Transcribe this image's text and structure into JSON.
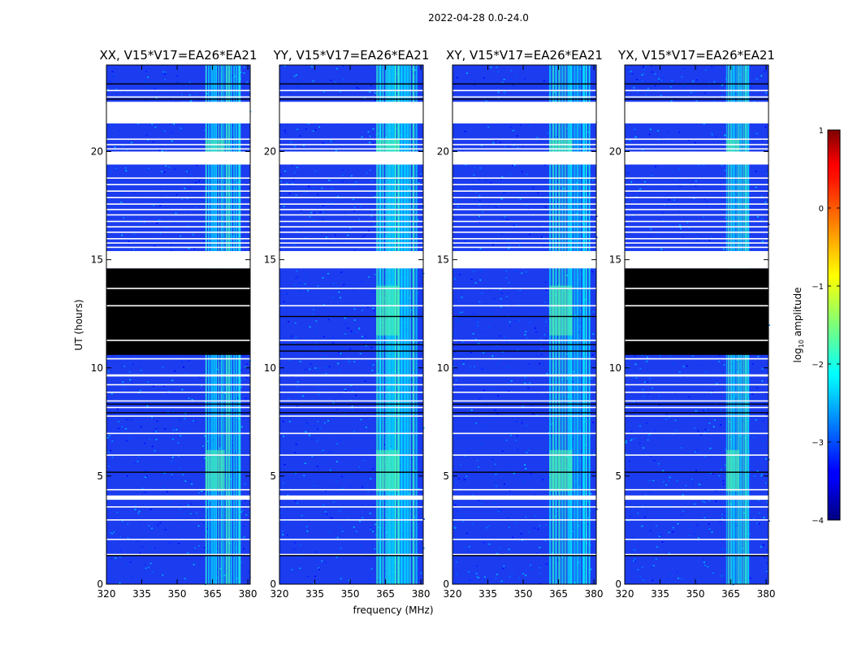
{
  "chart_data": {
    "type": "heatmap",
    "suptitle": "2022-04-28 0.0-24.0",
    "xlabel": "frequency (MHz)",
    "ylabel": "UT (hours)",
    "xlim": [
      320,
      381
    ],
    "ylim": [
      0,
      24
    ],
    "xticks": [
      "320",
      "335",
      "350",
      "365",
      "380"
    ],
    "xtick_values": [
      320,
      335,
      350,
      365,
      380
    ],
    "yticks": [
      "0",
      "5",
      "10",
      "15",
      "20"
    ],
    "ytick_values": [
      0,
      5,
      10,
      15,
      20
    ],
    "panels": [
      {
        "title": "XX, V15*V17=EA26*EA21",
        "blacked_out_ut": [
          10.6,
          14.6
        ],
        "bright_band_mhz": [
          362,
          377
        ]
      },
      {
        "title": "YY, V15*V17=EA26*EA21",
        "blacked_out_ut": null,
        "bright_band_mhz": [
          361,
          379
        ]
      },
      {
        "title": "XY, V15*V17=EA26*EA21",
        "blacked_out_ut": null,
        "bright_band_mhz": [
          361,
          379
        ]
      },
      {
        "title": "YX, V15*V17=EA26*EA21",
        "blacked_out_ut": [
          10.6,
          14.6
        ],
        "bright_band_mhz": [
          363,
          373
        ]
      }
    ],
    "flagged_ut_ranges": [
      [
        21.3,
        22.3
      ],
      [
        19.4,
        20.0
      ],
      [
        14.6,
        15.4
      ],
      [
        3.9,
        4.1
      ],
      [
        9.6,
        9.7
      ]
    ],
    "colorbar": {
      "label_main": "log",
      "label_sub": "10",
      "label_tail": " amplitude",
      "range": [
        -4,
        1
      ],
      "ticks": [
        "1",
        "0",
        "−1",
        "−2",
        "−3",
        "−4"
      ],
      "tick_values": [
        1,
        0,
        -1,
        -2,
        -3,
        -4
      ],
      "colormap": "jet"
    }
  }
}
